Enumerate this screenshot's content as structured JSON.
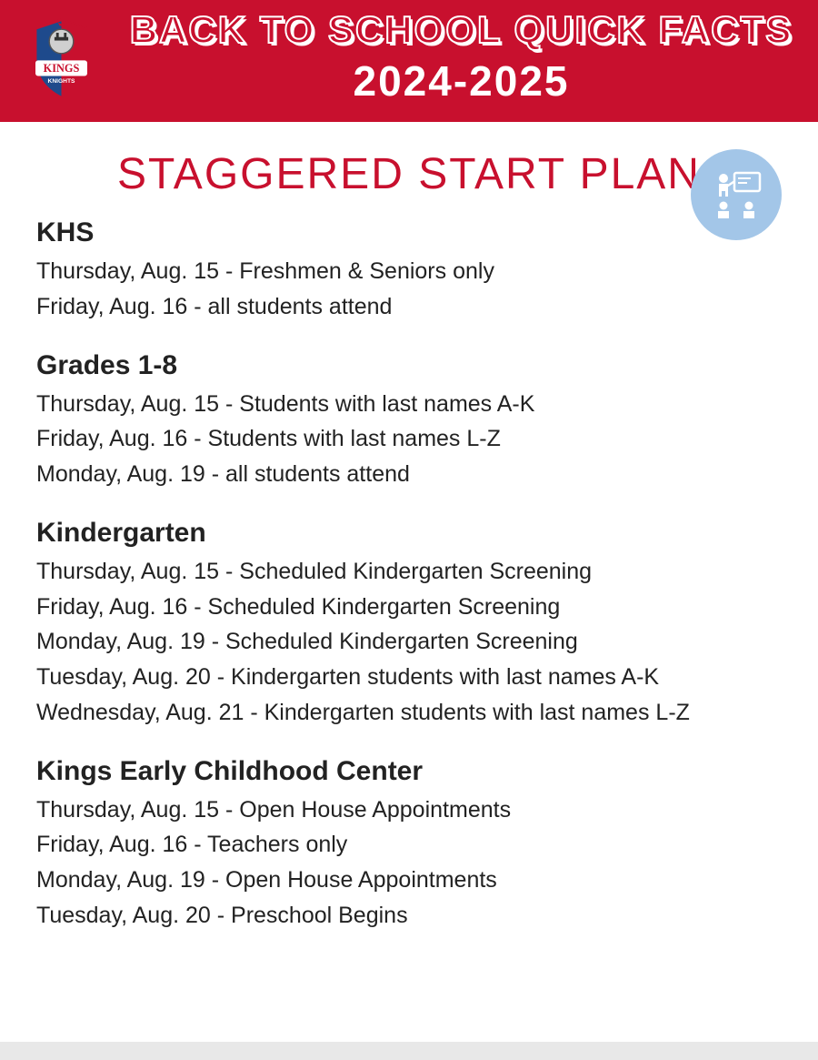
{
  "header": {
    "title": "BACK TO SCHOOL QUICK FACTS",
    "year": "2024-2025",
    "banner_bg": "#c8102e",
    "logo_text_top": "KINGS",
    "logo_text_bottom": "KNIGHTS"
  },
  "page": {
    "title": "STAGGERED START PLAN",
    "title_color": "#c8102e",
    "icon_bg": "#a3c6e8"
  },
  "sections": [
    {
      "heading": "KHS",
      "items": [
        "Thursday, Aug. 15 - Freshmen & Seniors only",
        "Friday, Aug. 16 - all students attend"
      ]
    },
    {
      "heading": "Grades 1-8",
      "items": [
        "Thursday, Aug. 15 - Students with last names A-K",
        "Friday, Aug. 16 - Students with last names L-Z",
        "Monday, Aug. 19 - all students attend"
      ]
    },
    {
      "heading": "Kindergarten",
      "items": [
        "Thursday, Aug. 15 - Scheduled Kindergarten Screening",
        "Friday, Aug. 16 - Scheduled Kindergarten Screening",
        "Monday, Aug. 19 - Scheduled Kindergarten Screening",
        "Tuesday, Aug. 20 - Kindergarten students with last names A-K",
        "Wednesday, Aug. 21 - Kindergarten students with last names L-Z"
      ]
    },
    {
      "heading": "Kings Early Childhood Center",
      "items": [
        "Thursday, Aug. 15 - Open House Appointments",
        "Friday, Aug. 16 - Teachers only",
        "Monday, Aug. 19 - Open House Appointments",
        "Tuesday, Aug. 20 - Preschool Begins"
      ]
    }
  ]
}
